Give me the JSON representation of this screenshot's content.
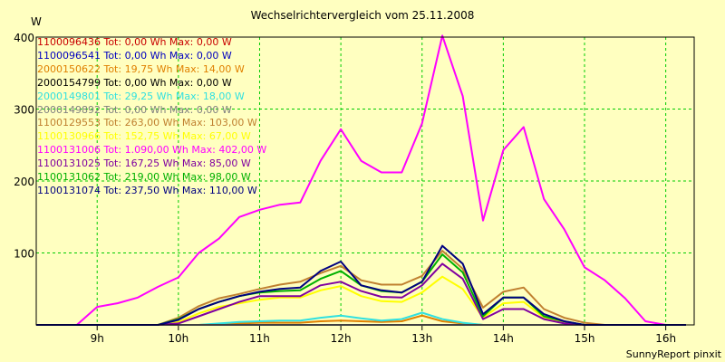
{
  "chart_data": {
    "type": "line",
    "title": "Wechselrichtervergleich vom 25.11.2008",
    "ylabel": "W",
    "xlabel": "",
    "ylim": [
      0,
      400
    ],
    "xlim": [
      8.25,
      16.35
    ],
    "grid": true,
    "legend_position": "top-left",
    "y_ticks": [
      100,
      200,
      300,
      400
    ],
    "y_tick_labels": [
      "100",
      "200",
      "300",
      "400"
    ],
    "x_ticks": [
      9,
      10,
      11,
      12,
      13,
      14,
      15,
      16
    ],
    "x_tick_labels": [
      "9h",
      "10h",
      "11h",
      "12h",
      "13h",
      "14h",
      "15h",
      "16h"
    ],
    "x": [
      8.25,
      8.75,
      9.0,
      9.25,
      9.5,
      9.75,
      10.0,
      10.25,
      10.5,
      10.75,
      11.0,
      11.25,
      11.5,
      11.75,
      12.0,
      12.25,
      12.5,
      12.75,
      13.0,
      13.25,
      13.5,
      13.75,
      14.0,
      14.25,
      14.5,
      14.75,
      15.0,
      15.25,
      15.5,
      15.75,
      16.0,
      16.25
    ],
    "series": [
      {
        "name": "1100096436",
        "label": "1100096436 Tot: 0,00 Wh Max: 0,00 W",
        "color": "#c80000",
        "values": [
          0,
          0,
          0,
          0,
          0,
          0,
          0,
          0,
          0,
          0,
          0,
          0,
          0,
          0,
          0,
          0,
          0,
          0,
          0,
          0,
          0,
          0,
          0,
          0,
          0,
          0,
          0,
          0,
          0,
          0,
          0,
          0
        ]
      },
      {
        "name": "1100096541",
        "label": "1100096541 Tot: 0,00 Wh Max: 0,00 W",
        "color": "#0000c0",
        "values": [
          0,
          0,
          0,
          0,
          0,
          0,
          0,
          0,
          0,
          0,
          0,
          0,
          0,
          0,
          0,
          0,
          0,
          0,
          0,
          0,
          0,
          0,
          0,
          0,
          0,
          0,
          0,
          0,
          0,
          0,
          0,
          0
        ]
      },
      {
        "name": "2000150622",
        "label": "2000150622 Tot: 19,75 Wh Max: 14,00 W",
        "color": "#e08000",
        "values": [
          0,
          0,
          0,
          0,
          0,
          0,
          0,
          0,
          1,
          2,
          3,
          3,
          3,
          5,
          6,
          5,
          4,
          5,
          13,
          5,
          2,
          0,
          0,
          0,
          0,
          0,
          0,
          0,
          0,
          0,
          0,
          0
        ]
      },
      {
        "name": "2000154799",
        "label": "2000154799 Tot: 0,00 Wh Max: 0,00 W",
        "color": "#000000",
        "values": [
          0,
          0,
          0,
          0,
          0,
          0,
          0,
          0,
          0,
          0,
          0,
          0,
          0,
          0,
          0,
          0,
          0,
          0,
          0,
          0,
          0,
          0,
          0,
          0,
          0,
          0,
          0,
          0,
          0,
          0,
          0,
          0
        ]
      },
      {
        "name": "2000149801",
        "label": "2000149801 Tot: 29,25 Wh Max: 18,00 W",
        "color": "#30e0e0",
        "values": [
          0,
          0,
          0,
          0,
          0,
          0,
          0,
          0,
          2,
          4,
          5,
          6,
          6,
          10,
          13,
          9,
          6,
          8,
          17,
          8,
          3,
          0,
          0,
          0,
          0,
          0,
          0,
          0,
          0,
          0,
          0,
          0
        ]
      },
      {
        "name": "2000149892",
        "label": "2000149892 Tot: 0,00 Wh Max: 0,00 W",
        "color": "#808080",
        "values": [
          0,
          0,
          0,
          0,
          0,
          0,
          0,
          0,
          0,
          0,
          0,
          0,
          0,
          0,
          0,
          0,
          0,
          0,
          0,
          0,
          0,
          0,
          0,
          0,
          0,
          0,
          0,
          0,
          0,
          0,
          0,
          0
        ]
      },
      {
        "name": "1100129553",
        "label": "1100129553 Tot: 263,00 Wh Max: 103,00 W",
        "color": "#c08030",
        "values": [
          0,
          0,
          0,
          0,
          0,
          0,
          10,
          26,
          37,
          43,
          50,
          56,
          60,
          72,
          82,
          62,
          56,
          56,
          68,
          103,
          78,
          24,
          46,
          52,
          22,
          10,
          3,
          0,
          0,
          0,
          0,
          0
        ]
      },
      {
        "name": "1100130966",
        "label": "1100130966 Tot: 152,75 Wh Max: 67,00 W",
        "color": "#ffff00",
        "values": [
          0,
          0,
          0,
          0,
          0,
          0,
          4,
          16,
          25,
          30,
          35,
          38,
          38,
          48,
          54,
          40,
          33,
          32,
          45,
          67,
          50,
          10,
          30,
          32,
          10,
          3,
          0,
          0,
          0,
          0,
          0,
          0
        ]
      },
      {
        "name": "1100131006",
        "label": "1100131006 Tot: 1.090,00 Wh Max: 402,00 W",
        "color": "#ff00ff",
        "values": [
          0,
          0,
          25,
          30,
          38,
          53,
          66,
          100,
          120,
          150,
          160,
          167,
          170,
          228,
          272,
          228,
          212,
          212,
          280,
          402,
          318,
          145,
          243,
          275,
          175,
          133,
          80,
          62,
          37,
          5,
          0,
          0
        ]
      },
      {
        "name": "1100131025",
        "label": "1100131025 Tot: 167,25 Wh Max: 85,00 W",
        "color": "#8000a0",
        "values": [
          0,
          0,
          0,
          0,
          0,
          0,
          2,
          12,
          22,
          32,
          40,
          40,
          40,
          55,
          60,
          47,
          39,
          38,
          55,
          85,
          64,
          8,
          22,
          22,
          8,
          2,
          0,
          0,
          0,
          0,
          0,
          0
        ]
      },
      {
        "name": "1100131062",
        "label": "1100131062 Tot: 219,00 Wh Max: 98,00 W",
        "color": "#00b000",
        "values": [
          0,
          0,
          0,
          0,
          0,
          0,
          8,
          22,
          32,
          40,
          45,
          47,
          48,
          64,
          75,
          55,
          47,
          45,
          60,
          98,
          73,
          12,
          38,
          38,
          12,
          5,
          0,
          0,
          0,
          0,
          0,
          0
        ]
      },
      {
        "name": "1100131074",
        "label": "1100131074 Tot: 237,50 Wh Max: 110,00 W",
        "color": "#000080",
        "values": [
          0,
          0,
          0,
          0,
          0,
          0,
          7,
          22,
          32,
          40,
          46,
          50,
          52,
          75,
          88,
          55,
          48,
          45,
          60,
          110,
          85,
          15,
          38,
          38,
          15,
          5,
          0,
          0,
          0,
          0,
          0,
          0
        ]
      }
    ]
  },
  "footer_text": "SunnyReport pinxit"
}
